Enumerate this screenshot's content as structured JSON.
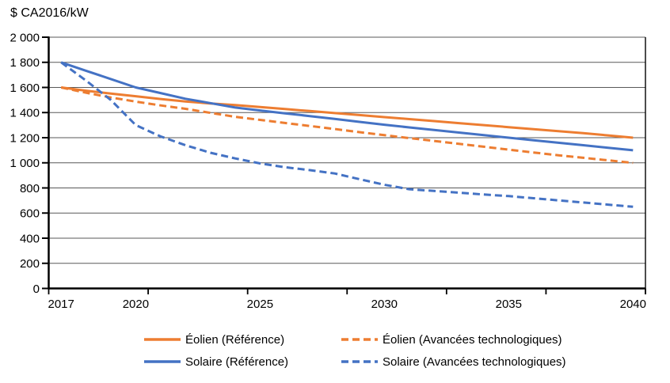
{
  "chart_data": {
    "type": "line",
    "title": "$ CA2016/kW",
    "ylabel": "$ CA2016/kW",
    "xlabel": "",
    "x": [
      2017,
      2018,
      2019,
      2020,
      2021,
      2022,
      2023,
      2024,
      2025,
      2026,
      2027,
      2028,
      2029,
      2030,
      2031,
      2032,
      2033,
      2034,
      2035,
      2036,
      2037,
      2038,
      2039,
      2040
    ],
    "x_tick_years": [
      2017,
      2020,
      2025,
      2030,
      2035,
      2040
    ],
    "y_ticks": [
      0,
      200,
      400,
      600,
      800,
      1000,
      1200,
      1400,
      1600,
      1800,
      2000
    ],
    "ylim": [
      0,
      2000
    ],
    "grid": "horizontal",
    "legend_position": "bottom",
    "series": [
      {
        "id": "eolien-reference",
        "name": "Éolien (Référence)",
        "color": "#ED7D31",
        "dash": "solid",
        "values": [
          1600,
          1574,
          1551,
          1530,
          1508,
          1488,
          1473,
          1460,
          1444,
          1428,
          1412,
          1396,
          1380,
          1364,
          1348,
          1332,
          1316,
          1300,
          1284,
          1268,
          1252,
          1236,
          1218,
          1200
        ]
      },
      {
        "id": "eolien-avancees-technologiques",
        "name": "Éolien (Avancées technologiques)",
        "color": "#ED7D31",
        "dash": "dashed",
        "values": [
          1600,
          1558,
          1520,
          1487,
          1457,
          1430,
          1398,
          1366,
          1342,
          1317,
          1293,
          1269,
          1244,
          1220,
          1197,
          1174,
          1151,
          1128,
          1105,
          1082,
          1060,
          1040,
          1020,
          1000
        ]
      },
      {
        "id": "solaire-reference",
        "name": "Solaire (Référence)",
        "color": "#4472C4",
        "dash": "solid",
        "values": [
          1800,
          1733,
          1667,
          1600,
          1555,
          1510,
          1475,
          1440,
          1417,
          1394,
          1372,
          1349,
          1326,
          1303,
          1282,
          1262,
          1241,
          1221,
          1200,
          1180,
          1160,
          1140,
          1120,
          1100
        ]
      },
      {
        "id": "solaire-avancees-technologiques",
        "name": "Solaire (Avancées technologiques)",
        "color": "#4472C4",
        "dash": "dashed",
        "values": [
          1800,
          1655,
          1500,
          1300,
          1210,
          1140,
          1080,
          1035,
          995,
          965,
          942,
          915,
          870,
          825,
          790,
          776,
          762,
          748,
          735,
          718,
          701,
          684,
          667,
          650
        ]
      }
    ]
  },
  "colors": {
    "orange": "#ED7D31",
    "blue": "#4472C4",
    "gridline": "#595959",
    "axis": "#000000",
    "text": "#000000"
  }
}
